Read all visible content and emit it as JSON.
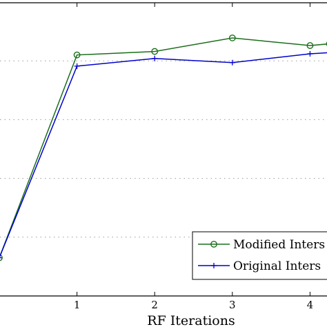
{
  "chart_data": {
    "type": "line",
    "title": "",
    "xlabel": "RF Iterations",
    "ylabel": "",
    "xlim": [
      0,
      4.25
    ],
    "ylim": [
      0,
      5
    ],
    "x_ticks": [
      "1",
      "2",
      "3",
      "4"
    ],
    "x": [
      0,
      1,
      2,
      3,
      4,
      4.25
    ],
    "grid": "horizontal dotted",
    "legend_position": "bottom-right",
    "series": [
      {
        "name": "Modified Inters",
        "color": "#1a6e1a",
        "marker": "circle",
        "values": [
          0.65,
          4.1,
          4.16,
          4.39,
          4.26,
          4.29
        ]
      },
      {
        "name": "Original Inters",
        "color": "#0000cc",
        "marker": "plus",
        "values": [
          0.65,
          3.91,
          4.04,
          3.97,
          4.12,
          4.14
        ]
      }
    ]
  }
}
